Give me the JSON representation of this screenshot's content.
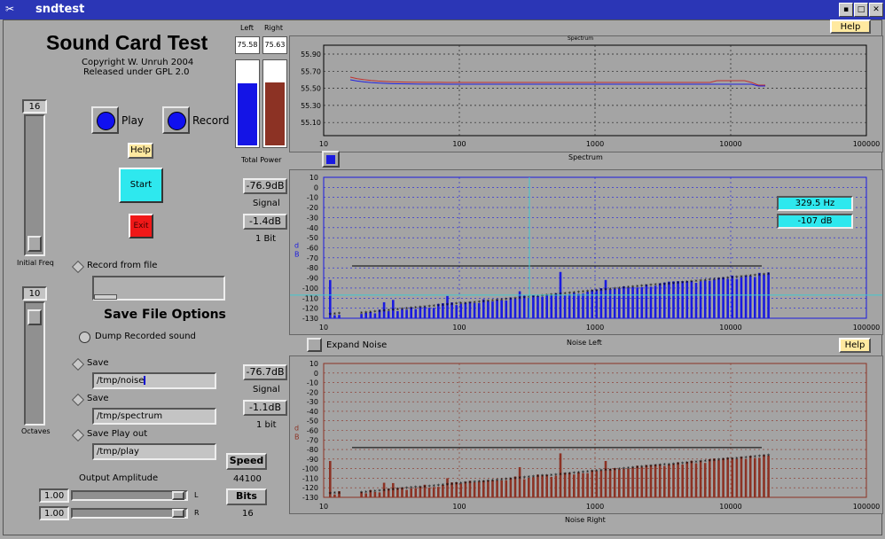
{
  "window": {
    "title": "sndtest",
    "menu_icon": "✂",
    "min_icon": "▪",
    "max_icon": "□",
    "close_icon": "✕"
  },
  "header": {
    "title": "Sound Card Test",
    "copyright": "Copyright W. Unruh 2004",
    "license": "Released under GPL 2.0"
  },
  "controls": {
    "play_label": "Play",
    "record_label": "Record",
    "help_label": "Help",
    "start_label": "Start",
    "exit_label": "Exit",
    "initial_freq_value": "16",
    "initial_freq_label": "Initial Freq",
    "octaves_value": "10",
    "octaves_label": "Octaves",
    "record_from_file": "Record from file",
    "save_file_options": "Save File Options",
    "dump_recorded": "Dump Recorded sound",
    "save1_label": "Save",
    "save1_value": "/tmp/noise",
    "save2_label": "Save",
    "save2_value": "/tmp/spectrum",
    "save3_label": "Save Play out",
    "save3_value": "/tmp/play",
    "output_amplitude": "Output Amplitude",
    "amp_left_value": "1.00",
    "amp_left_channel": "L",
    "amp_right_value": "1.00",
    "amp_right_channel": "R",
    "speed_label": "Speed",
    "speed_value": "44100",
    "bits_label": "Bits",
    "bits_value": "16"
  },
  "power": {
    "left_label": "Left",
    "right_label": "Right",
    "left_value": "75.58",
    "right_value": "75.63",
    "total_label": "Total Power",
    "left_fill": 0.73,
    "right_fill": 0.74,
    "left_color": "#1414e6",
    "right_color": "#8c3224"
  },
  "top_graph": {
    "title": "Spectrum",
    "caption": "Spectrum",
    "yticks": [
      "55.90",
      "55.70",
      "55.50",
      "55.30",
      "55.10"
    ],
    "xticks": [
      "10",
      "100",
      "1000",
      "10000",
      "100000"
    ]
  },
  "signal_left": {
    "db_value": "-76.9dB",
    "signal_label": "Signal",
    "bit_value": "-1.4dB",
    "bit_label": "1 Bit"
  },
  "signal_right": {
    "db_value": "-76.7dB",
    "signal_label": "Signal",
    "bit_value": "-1.1dB",
    "bit_label": "1 bit"
  },
  "noise_left": {
    "title": "Noise Left",
    "ylabel": "d\nB",
    "freq_readout": "329.5 Hz",
    "db_readout": "-107 dB",
    "color": "#1a1ae0"
  },
  "noise_right": {
    "title": "Noise Right",
    "ylabel": "d\nB",
    "color": "#8c3224"
  },
  "expand_noise": {
    "label": "Expand Noise",
    "help_label": "Help"
  },
  "noise_yticks": [
    "10",
    "0",
    "-10",
    "-20",
    "-30",
    "-40",
    "-50",
    "-60",
    "-70",
    "-80",
    "-90",
    "-100",
    "-110",
    "-120",
    "-130"
  ],
  "noise_xticks": [
    "10",
    "100",
    "1000",
    "10000",
    "100000"
  ]
}
